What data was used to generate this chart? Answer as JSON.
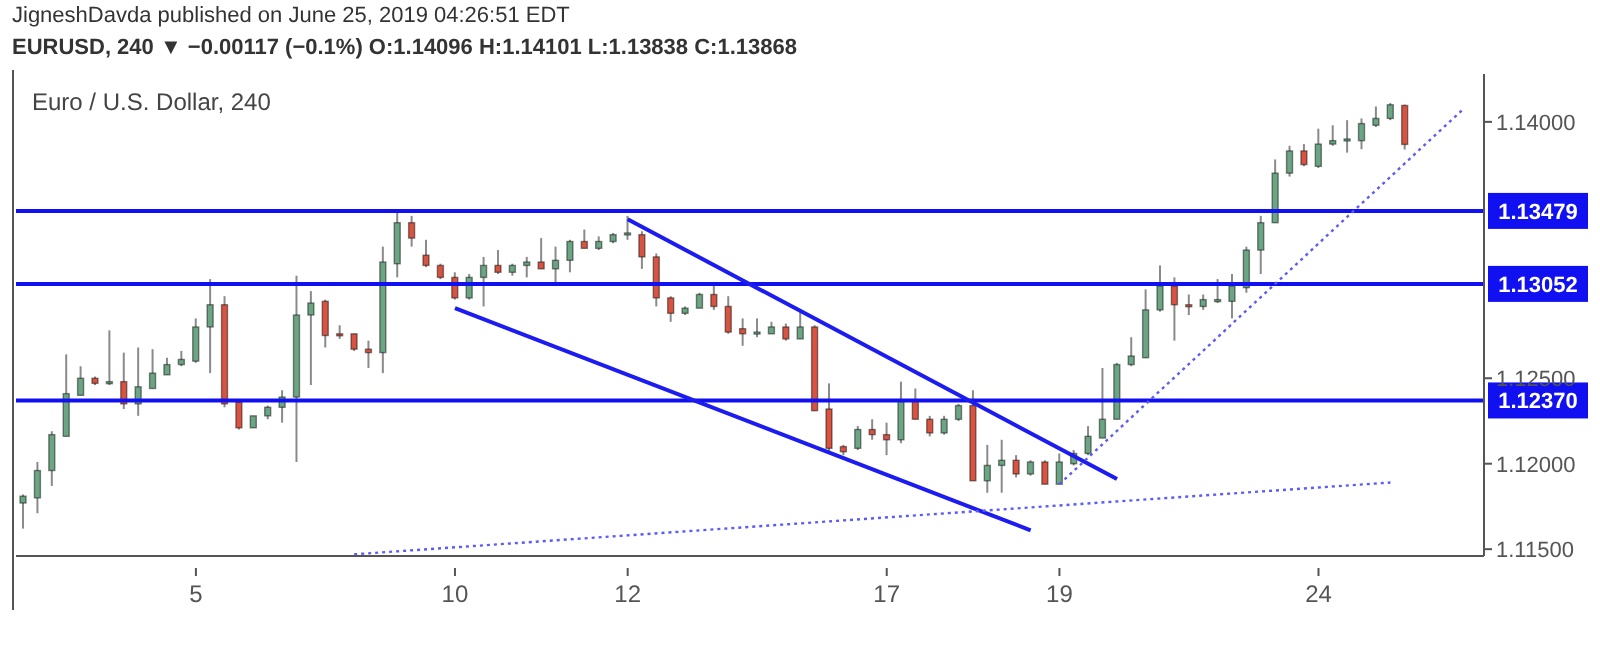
{
  "chart_data": {
    "type": "candlestick",
    "title": "Euro / U.S. Dollar, 240",
    "subtitle": "EURUSD, 240 ▼ −0.00117 (−0.1%) O:1.14096 H:1.14101 L:1.13838 C:1.13868",
    "annotations": [
      "JigneshDavda published on June 25, 2019 04:26:51 EDT"
    ],
    "categories": [
      null,
      null,
      null,
      null,
      null,
      null,
      null,
      null,
      null,
      null,
      null,
      null,
      "5",
      null,
      null,
      null,
      null,
      null,
      null,
      null,
      null,
      null,
      null,
      null,
      null,
      null,
      null,
      null,
      null,
      null,
      "10",
      null,
      null,
      null,
      null,
      null,
      null,
      null,
      null,
      null,
      null,
      null,
      "12",
      null,
      null,
      null,
      null,
      null,
      null,
      null,
      null,
      null,
      null,
      null,
      null,
      null,
      null,
      null,
      null,
      null,
      "17",
      null,
      null,
      null,
      null,
      null,
      null,
      null,
      null,
      null,
      null,
      null,
      "19",
      null,
      null,
      null,
      null,
      null,
      null,
      null,
      null,
      null,
      null,
      null,
      null,
      null,
      null,
      null,
      null,
      null,
      "24",
      null,
      null,
      null,
      null,
      null,
      null,
      null,
      null,
      null,
      null,
      null
    ],
    "ohlc": [
      [
        1.1177,
        1.1182,
        1.1162,
        1.1181
      ],
      [
        1.118,
        1.1201,
        1.1171,
        1.1196
      ],
      [
        1.1196,
        1.1219,
        1.1187,
        1.1217
      ],
      [
        1.1216,
        1.1264,
        1.1216,
        1.1241
      ],
      [
        1.124,
        1.1257,
        1.124,
        1.125
      ],
      [
        1.125,
        1.1251,
        1.1246,
        1.1247
      ],
      [
        1.1247,
        1.1278,
        1.1246,
        1.1248
      ],
      [
        1.1248,
        1.1265,
        1.1232,
        1.1235
      ],
      [
        1.1235,
        1.1268,
        1.1228,
        1.1245
      ],
      [
        1.1244,
        1.1267,
        1.1244,
        1.1253
      ],
      [
        1.1252,
        1.1262,
        1.1252,
        1.1258
      ],
      [
        1.1258,
        1.1266,
        1.1257,
        1.1261
      ],
      [
        1.126,
        1.1285,
        1.1259,
        1.128
      ],
      [
        1.128,
        1.1308,
        1.1253,
        1.1293
      ],
      [
        1.1293,
        1.1298,
        1.1233,
        1.1235
      ],
      [
        1.1236,
        1.1236,
        1.122,
        1.1221
      ],
      [
        1.1221,
        1.1228,
        1.1221,
        1.1228
      ],
      [
        1.1228,
        1.1234,
        1.1226,
        1.1233
      ],
      [
        1.1233,
        1.1243,
        1.1224,
        1.1239
      ],
      [
        1.1239,
        1.131,
        1.1201,
        1.1287
      ],
      [
        1.1287,
        1.1301,
        1.1246,
        1.1294
      ],
      [
        1.1295,
        1.1296,
        1.1268,
        1.1275
      ],
      [
        1.1276,
        1.1281,
        1.1273,
        1.1275
      ],
      [
        1.1276,
        1.1276,
        1.1266,
        1.1267
      ],
      [
        1.1267,
        1.1272,
        1.1256,
        1.1265
      ],
      [
        1.1265,
        1.1327,
        1.1253,
        1.1318
      ],
      [
        1.1317,
        1.1348,
        1.1309,
        1.1341
      ],
      [
        1.1341,
        1.1345,
        1.1327,
        1.1332
      ],
      [
        1.1322,
        1.1331,
        1.1315,
        1.1316
      ],
      [
        1.1316,
        1.1317,
        1.1308,
        1.1309
      ],
      [
        1.1309,
        1.1312,
        1.1296,
        1.1297
      ],
      [
        1.1297,
        1.1311,
        1.1296,
        1.1309
      ],
      [
        1.1309,
        1.1321,
        1.1292,
        1.1316
      ],
      [
        1.1316,
        1.1325,
        1.1311,
        1.1312
      ],
      [
        1.1312,
        1.1317,
        1.131,
        1.1316
      ],
      [
        1.1316,
        1.1321,
        1.1309,
        1.1318
      ],
      [
        1.1318,
        1.1332,
        1.1314,
        1.1314
      ],
      [
        1.1314,
        1.1327,
        1.1304,
        1.1319
      ],
      [
        1.1319,
        1.1331,
        1.1312,
        1.133
      ],
      [
        1.133,
        1.1337,
        1.1326,
        1.1326
      ],
      [
        1.1326,
        1.1333,
        1.1325,
        1.133
      ],
      [
        1.133,
        1.1335,
        1.1329,
        1.1334
      ],
      [
        1.1334,
        1.1345,
        1.1331,
        1.1335
      ],
      [
        1.1334,
        1.1336,
        1.1314,
        1.1321
      ],
      [
        1.1321,
        1.1323,
        1.1292,
        1.1297
      ],
      [
        1.1297,
        1.1298,
        1.1283,
        1.1288
      ],
      [
        1.1288,
        1.1292,
        1.1287,
        1.1291
      ],
      [
        1.1291,
        1.13,
        1.1291,
        1.1299
      ],
      [
        1.1299,
        1.1304,
        1.129,
        1.1292
      ],
      [
        1.1292,
        1.1298,
        1.1276,
        1.1277
      ],
      [
        1.1279,
        1.1285,
        1.1269,
        1.1276
      ],
      [
        1.1276,
        1.1285,
        1.1274,
        1.1277
      ],
      [
        1.1276,
        1.1283,
        1.1276,
        1.128
      ],
      [
        1.128,
        1.1282,
        1.1272,
        1.1273
      ],
      [
        1.1273,
        1.129,
        1.1273,
        1.128
      ],
      [
        1.128,
        1.1281,
        1.1231,
        1.1231
      ],
      [
        1.1232,
        1.1247,
        1.1206,
        1.1209
      ],
      [
        1.121,
        1.1211,
        1.1205,
        1.1207
      ],
      [
        1.1209,
        1.1222,
        1.1208,
        1.122
      ],
      [
        1.122,
        1.1226,
        1.1214,
        1.1217
      ],
      [
        1.1217,
        1.1224,
        1.1205,
        1.1214
      ],
      [
        1.1214,
        1.1248,
        1.1212,
        1.1237
      ],
      [
        1.1237,
        1.1244,
        1.1226,
        1.1226
      ],
      [
        1.1226,
        1.1228,
        1.1216,
        1.1218
      ],
      [
        1.1218,
        1.1228,
        1.1217,
        1.1226
      ],
      [
        1.1226,
        1.1235,
        1.1225,
        1.1234
      ],
      [
        1.1234,
        1.1243,
        1.119,
        1.119
      ],
      [
        1.119,
        1.1211,
        1.1183,
        1.1199
      ],
      [
        1.1199,
        1.1214,
        1.1183,
        1.1202
      ],
      [
        1.1202,
        1.1205,
        1.1192,
        1.1194
      ],
      [
        1.1194,
        1.1202,
        1.1193,
        1.1201
      ],
      [
        1.1201,
        1.1202,
        1.1188,
        1.1188
      ],
      [
        1.1188,
        1.1206,
        1.1188,
        1.1201
      ],
      [
        1.12,
        1.1208,
        1.1199,
        1.1206
      ],
      [
        1.1206,
        1.1222,
        1.1205,
        1.1216
      ],
      [
        1.1215,
        1.1256,
        1.1215,
        1.1226
      ],
      [
        1.1226,
        1.1259,
        1.1226,
        1.1258
      ],
      [
        1.1258,
        1.1274,
        1.1257,
        1.1263
      ],
      [
        1.1262,
        1.1302,
        1.1262,
        1.129
      ],
      [
        1.129,
        1.1316,
        1.1289,
        1.1304
      ],
      [
        1.1304,
        1.1309,
        1.1272,
        1.1293
      ],
      [
        1.1293,
        1.1299,
        1.1287,
        1.1292
      ],
      [
        1.1292,
        1.1299,
        1.129,
        1.1296
      ],
      [
        1.1295,
        1.1308,
        1.1294,
        1.1296
      ],
      [
        1.1295,
        1.1311,
        1.1285,
        1.1304
      ],
      [
        1.1303,
        1.1327,
        1.13,
        1.1325
      ],
      [
        1.1325,
        1.1345,
        1.1311,
        1.1341
      ],
      [
        1.1341,
        1.1378,
        1.1341,
        1.137
      ],
      [
        1.137,
        1.1386,
        1.1368,
        1.1383
      ],
      [
        1.1383,
        1.1387,
        1.1374,
        1.1375
      ],
      [
        1.1374,
        1.1396,
        1.1373,
        1.1387
      ],
      [
        1.1387,
        1.1398,
        1.1386,
        1.1389
      ],
      [
        1.1389,
        1.1401,
        1.1382,
        1.139
      ],
      [
        1.1389,
        1.1402,
        1.1384,
        1.1399
      ],
      [
        1.1398,
        1.1409,
        1.1397,
        1.1402
      ],
      [
        1.1402,
        1.1411,
        1.1401,
        1.141
      ],
      [
        1.14096,
        1.14101,
        1.13838,
        1.13868
      ],
      null,
      null,
      null,
      null,
      null
    ],
    "colors": [
      "#6ba583",
      "#6ba583",
      "#6ba583",
      "#6ba583",
      "#6ba583",
      "#d75442",
      "#6ba583",
      "#d75442",
      "#6ba583",
      "#6ba583",
      "#6ba583",
      "#6ba583",
      "#6ba583",
      "#6ba583",
      "#d75442",
      "#d75442",
      "#6ba583",
      "#6ba583",
      "#6ba583",
      "#6ba583",
      "#6ba583",
      "#d75442",
      "#d75442",
      "#d75442",
      "#d75442",
      "#6ba583",
      "#6ba583",
      "#d75442",
      "#d75442",
      "#d75442",
      "#d75442",
      "#6ba583",
      "#6ba583",
      "#d75442",
      "#6ba583",
      "#6ba583",
      "#d75442",
      "#6ba583",
      "#6ba583",
      "#d75442",
      "#6ba583",
      "#6ba583",
      "#6ba583",
      "#d75442",
      "#d75442",
      "#d75442",
      "#6ba583",
      "#6ba583",
      "#d75442",
      "#d75442",
      "#d75442",
      "#6ba583",
      "#6ba583",
      "#d75442",
      "#6ba583",
      "#d75442",
      "#d75442",
      "#d75442",
      "#6ba583",
      "#d75442",
      "#d75442",
      "#6ba583",
      "#d75442",
      "#d75442",
      "#6ba583",
      "#6ba583",
      "#d75442",
      "#6ba583",
      "#6ba583",
      "#d75442",
      "#6ba583",
      "#d75442",
      "#6ba583",
      "#6ba583",
      "#6ba583",
      "#6ba583",
      "#6ba583",
      "#6ba583",
      "#6ba583",
      "#6ba583",
      "#d75442",
      "#d75442",
      "#6ba583",
      "#6ba583",
      "#6ba583",
      "#6ba583",
      "#6ba583",
      "#6ba583",
      "#6ba583",
      "#d75442",
      "#6ba583",
      "#6ba583",
      "#6ba583",
      "#6ba583",
      "#6ba583",
      "#6ba583",
      "#d75442",
      null,
      null,
      null,
      null,
      null
    ],
    "series": [
      {
        "type": "line",
        "color": "#1c1cf0",
        "line_style": "solid",
        "values": [
          null,
          null,
          null,
          null,
          null,
          null,
          null,
          null,
          null,
          null,
          null,
          null,
          null,
          null,
          null,
          null,
          null,
          null,
          null,
          null,
          null,
          null,
          null,
          null,
          null,
          null,
          null,
          null,
          null,
          null,
          null,
          null,
          null,
          null,
          null,
          null,
          null,
          null,
          null,
          null,
          null,
          null,
          1.1343,
          null,
          null,
          null,
          null,
          null,
          null,
          null,
          null,
          null,
          null,
          null,
          null,
          null,
          null,
          null,
          null,
          null,
          null,
          null,
          null,
          null,
          null,
          null,
          null,
          null,
          null,
          null,
          null,
          null,
          null,
          null,
          null,
          null,
          1.1191,
          null,
          null,
          null,
          null,
          null,
          null,
          null,
          null,
          null,
          null,
          null,
          null,
          null,
          null,
          null,
          null,
          null,
          null,
          null,
          null,
          null,
          null,
          null,
          null,
          null
        ]
      },
      {
        "type": "line",
        "color": "#1c1cf0",
        "line_style": "solid",
        "values": [
          null,
          null,
          null,
          null,
          null,
          null,
          null,
          null,
          null,
          null,
          null,
          null,
          null,
          null,
          null,
          null,
          null,
          null,
          null,
          null,
          null,
          null,
          null,
          null,
          null,
          null,
          null,
          null,
          null,
          null,
          1.1291,
          null,
          null,
          null,
          null,
          null,
          null,
          null,
          null,
          null,
          null,
          null,
          null,
          null,
          null,
          null,
          null,
          null,
          null,
          null,
          null,
          null,
          null,
          null,
          null,
          null,
          null,
          null,
          null,
          null,
          null,
          null,
          null,
          null,
          null,
          null,
          null,
          null,
          null,
          null,
          1.1161,
          null,
          null,
          null,
          null,
          null,
          null,
          null,
          null,
          null,
          null,
          null,
          null,
          null,
          null,
          null,
          null,
          null,
          null,
          null,
          null,
          null,
          null,
          null,
          null,
          null,
          null,
          null,
          null,
          null,
          null,
          null
        ]
      },
      {
        "type": "line",
        "color": "#5c5cf5",
        "line_style": "dotted",
        "values": [
          null,
          null,
          null,
          null,
          null,
          null,
          null,
          null,
          null,
          null,
          null,
          null,
          null,
          null,
          null,
          null,
          null,
          null,
          null,
          null,
          null,
          null,
          null,
          null,
          null,
          null,
          null,
          null,
          null,
          null,
          null,
          null,
          null,
          null,
          null,
          null,
          null,
          null,
          null,
          null,
          null,
          null,
          null,
          null,
          null,
          null,
          null,
          null,
          null,
          null,
          null,
          null,
          null,
          null,
          null,
          null,
          null,
          null,
          null,
          null,
          null,
          null,
          null,
          null,
          null,
          null,
          null,
          null,
          null,
          null,
          null,
          null,
          1.1188,
          null,
          null,
          null,
          null,
          null,
          null,
          null,
          null,
          null,
          null,
          null,
          null,
          null,
          null,
          null,
          null,
          null,
          null,
          null,
          null,
          null,
          null,
          null,
          null,
          null,
          null,
          null,
          1.1407,
          null
        ]
      },
      {
        "type": "line",
        "color": "#5c5cf5",
        "line_style": "dotted",
        "values": [
          null,
          null,
          null,
          null,
          null,
          null,
          null,
          null,
          null,
          null,
          null,
          null,
          null,
          null,
          null,
          null,
          null,
          null,
          null,
          null,
          null,
          null,
          null,
          1.1147,
          null,
          null,
          null,
          null,
          null,
          null,
          null,
          null,
          null,
          null,
          null,
          null,
          null,
          null,
          null,
          null,
          null,
          null,
          null,
          null,
          null,
          null,
          null,
          null,
          null,
          null,
          null,
          null,
          null,
          null,
          null,
          null,
          null,
          null,
          null,
          null,
          null,
          null,
          null,
          null,
          null,
          null,
          null,
          null,
          null,
          null,
          null,
          null,
          null,
          null,
          null,
          null,
          null,
          null,
          null,
          null,
          null,
          null,
          null,
          null,
          null,
          null,
          null,
          null,
          null,
          null,
          null,
          null,
          null,
          null,
          null,
          1.1189,
          null,
          null,
          null,
          null,
          null,
          null
        ]
      }
    ],
    "ref_lines": [
      {
        "axis": "y",
        "value": 1.13479,
        "label": "1.13479",
        "color": "#1010f0"
      },
      {
        "axis": "y",
        "value": 1.13052,
        "label": "1.13052",
        "color": "#1010f0"
      },
      {
        "axis": "y",
        "value": 1.1237,
        "label": "1.12370",
        "color": "#1010f0"
      }
    ],
    "ylim": [
      1.1146,
      1.1428
    ],
    "yticks": [
      {
        "value": 1.115,
        "label": "1.11500"
      },
      {
        "value": 1.12,
        "label": "1.12000"
      },
      {
        "value": 1.125,
        "label": "1.12500"
      },
      {
        "value": 1.14,
        "label": "1.14000"
      }
    ]
  }
}
